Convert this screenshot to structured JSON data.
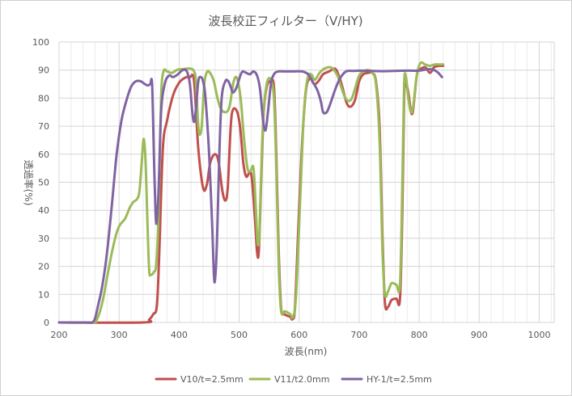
{
  "chart_data": {
    "type": "line",
    "title": "波長校正フィルター（V/HY)",
    "xlabel": "波長(nm)",
    "ylabel": "透過率(%)",
    "xlim": [
      200,
      1025
    ],
    "ylim": [
      0,
      100
    ],
    "x_ticks": [
      200,
      300,
      400,
      500,
      600,
      700,
      800,
      900,
      1000
    ],
    "y_ticks": [
      0,
      10,
      20,
      30,
      40,
      50,
      60,
      70,
      80,
      90,
      100
    ],
    "x_minor_step": 20,
    "grid": true,
    "legend_position": "bottom",
    "series": [
      {
        "name": "V10/t=2.5mm",
        "color": "#c0504d",
        "points": [
          [
            200,
            0
          ],
          [
            340,
            0
          ],
          [
            350,
            1
          ],
          [
            357,
            3
          ],
          [
            363,
            6
          ],
          [
            367,
            25
          ],
          [
            373,
            62
          ],
          [
            380,
            72
          ],
          [
            390,
            81
          ],
          [
            400,
            85.5
          ],
          [
            410,
            87.3
          ],
          [
            418,
            87.5
          ],
          [
            425,
            86
          ],
          [
            432,
            62
          ],
          [
            440,
            48
          ],
          [
            446,
            49
          ],
          [
            452,
            57
          ],
          [
            460,
            60
          ],
          [
            466,
            57
          ],
          [
            472,
            47
          ],
          [
            477,
            43.5
          ],
          [
            481,
            48
          ],
          [
            486,
            70
          ],
          [
            490,
            76
          ],
          [
            497,
            75
          ],
          [
            502,
            69
          ],
          [
            507,
            57
          ],
          [
            512,
            52
          ],
          [
            520,
            53
          ],
          [
            526,
            38
          ],
          [
            530,
            25
          ],
          [
            533,
            26
          ],
          [
            537,
            52
          ],
          [
            541,
            75
          ],
          [
            546,
            84
          ],
          [
            552,
            86
          ],
          [
            558,
            84
          ],
          [
            562,
            60
          ],
          [
            566,
            25
          ],
          [
            570,
            5
          ],
          [
            575,
            3
          ],
          [
            585,
            2
          ],
          [
            589,
            1.2
          ],
          [
            593,
            5
          ],
          [
            598,
            30
          ],
          [
            604,
            60
          ],
          [
            611,
            82
          ],
          [
            618,
            87
          ],
          [
            625,
            85
          ],
          [
            632,
            86
          ],
          [
            640,
            88.5
          ],
          [
            650,
            89.5
          ],
          [
            660,
            90.5
          ],
          [
            666,
            88
          ],
          [
            672,
            84
          ],
          [
            678,
            79
          ],
          [
            683,
            77
          ],
          [
            689,
            77.5
          ],
          [
            694,
            80
          ],
          [
            700,
            86
          ],
          [
            707,
            88.5
          ],
          [
            715,
            89
          ],
          [
            722,
            89
          ],
          [
            728,
            86
          ],
          [
            734,
            70
          ],
          [
            739,
            30
          ],
          [
            743,
            7
          ],
          [
            748,
            5.5
          ],
          [
            754,
            8
          ],
          [
            762,
            8.5
          ],
          [
            768,
            8.5
          ],
          [
            772,
            40
          ],
          [
            775,
            80
          ],
          [
            778,
            85
          ],
          [
            782,
            82
          ],
          [
            785,
            77
          ],
          [
            787,
            74.5
          ],
          [
            790,
            76
          ],
          [
            796,
            88
          ],
          [
            800,
            90
          ],
          [
            810,
            91
          ],
          [
            818,
            89
          ],
          [
            825,
            91
          ],
          [
            833,
            91.5
          ],
          [
            840,
            91.5
          ]
        ]
      },
      {
        "name": "V11/t2.0mm",
        "color": "#9bbb59",
        "points": [
          [
            200,
            0
          ],
          [
            255,
            0
          ],
          [
            263,
            1
          ],
          [
            272,
            7
          ],
          [
            280,
            16
          ],
          [
            288,
            25
          ],
          [
            296,
            32
          ],
          [
            302,
            35
          ],
          [
            310,
            37
          ],
          [
            318,
            41
          ],
          [
            324,
            43
          ],
          [
            330,
            44
          ],
          [
            334,
            47
          ],
          [
            338,
            58
          ],
          [
            341,
            65.5
          ],
          [
            344,
            58
          ],
          [
            347,
            38
          ],
          [
            350,
            19
          ],
          [
            353,
            17
          ],
          [
            358,
            18
          ],
          [
            362,
            21
          ],
          [
            366,
            40
          ],
          [
            370,
            80
          ],
          [
            374,
            89.5
          ],
          [
            380,
            89.5
          ],
          [
            388,
            89
          ],
          [
            396,
            90
          ],
          [
            404,
            90.3
          ],
          [
            412,
            90.5
          ],
          [
            420,
            90.5
          ],
          [
            425,
            89.5
          ],
          [
            428,
            86
          ],
          [
            432,
            70
          ],
          [
            435,
            67
          ],
          [
            438,
            71
          ],
          [
            442,
            85
          ],
          [
            447,
            89.5
          ],
          [
            453,
            88.5
          ],
          [
            458,
            86
          ],
          [
            464,
            80
          ],
          [
            470,
            76
          ],
          [
            478,
            75
          ],
          [
            484,
            77
          ],
          [
            490,
            85
          ],
          [
            494,
            87.5
          ],
          [
            498,
            86
          ],
          [
            503,
            79
          ],
          [
            508,
            66
          ],
          [
            514,
            55
          ],
          [
            519,
            54
          ],
          [
            524,
            55
          ],
          [
            528,
            40
          ],
          [
            531,
            28
          ],
          [
            534,
            33
          ],
          [
            538,
            62
          ],
          [
            542,
            78
          ],
          [
            547,
            86
          ],
          [
            553,
            86.5
          ],
          [
            558,
            80
          ],
          [
            562,
            55
          ],
          [
            566,
            20
          ],
          [
            570,
            4
          ],
          [
            576,
            4
          ],
          [
            585,
            3
          ],
          [
            590,
            2
          ],
          [
            595,
            10
          ],
          [
            602,
            45
          ],
          [
            608,
            75
          ],
          [
            614,
            87
          ],
          [
            620,
            88.5
          ],
          [
            626,
            86.5
          ],
          [
            634,
            89
          ],
          [
            642,
            90.5
          ],
          [
            652,
            91
          ],
          [
            658,
            90
          ],
          [
            664,
            88
          ],
          [
            670,
            84
          ],
          [
            676,
            80.5
          ],
          [
            682,
            79
          ],
          [
            688,
            80
          ],
          [
            694,
            84
          ],
          [
            700,
            88
          ],
          [
            707,
            89.5
          ],
          [
            715,
            90
          ],
          [
            722,
            89
          ],
          [
            728,
            85
          ],
          [
            734,
            65
          ],
          [
            739,
            25
          ],
          [
            743,
            10
          ],
          [
            748,
            11
          ],
          [
            754,
            14
          ],
          [
            762,
            13.5
          ],
          [
            768,
            13.5
          ],
          [
            772,
            50
          ],
          [
            775,
            85
          ],
          [
            778,
            87.5
          ],
          [
            782,
            80
          ],
          [
            786,
            75
          ],
          [
            790,
            77
          ],
          [
            796,
            88
          ],
          [
            802,
            92.5
          ],
          [
            810,
            92
          ],
          [
            818,
            91.5
          ],
          [
            826,
            92
          ],
          [
            835,
            92
          ],
          [
            840,
            92
          ]
        ]
      },
      {
        "name": "HY-1/t=2.5mm",
        "color": "#8064a2",
        "points": [
          [
            200,
            0
          ],
          [
            245,
            0
          ],
          [
            255,
            0
          ],
          [
            260,
            1.5
          ],
          [
            265,
            6
          ],
          [
            272,
            13
          ],
          [
            280,
            25
          ],
          [
            288,
            42
          ],
          [
            296,
            60
          ],
          [
            304,
            72
          ],
          [
            312,
            79
          ],
          [
            320,
            84
          ],
          [
            328,
            86
          ],
          [
            336,
            86
          ],
          [
            343,
            85
          ],
          [
            348,
            84.5
          ],
          [
            352,
            85
          ],
          [
            355,
            85
          ],
          [
            358,
            60
          ],
          [
            361,
            38
          ],
          [
            363,
            36.5
          ],
          [
            366,
            48
          ],
          [
            370,
            75
          ],
          [
            376,
            85
          ],
          [
            383,
            88
          ],
          [
            390,
            87.5
          ],
          [
            398,
            88.5
          ],
          [
            406,
            90
          ],
          [
            413,
            89.5
          ],
          [
            418,
            85
          ],
          [
            422,
            75
          ],
          [
            425,
            71.5
          ],
          [
            428,
            76
          ],
          [
            432,
            86
          ],
          [
            436,
            87.5
          ],
          [
            440,
            86
          ],
          [
            444,
            80
          ],
          [
            450,
            60
          ],
          [
            455,
            35
          ],
          [
            458,
            17
          ],
          [
            460,
            15.5
          ],
          [
            463,
            28
          ],
          [
            467,
            60
          ],
          [
            471,
            80
          ],
          [
            477,
            86
          ],
          [
            482,
            86
          ],
          [
            486,
            84
          ],
          [
            490,
            82
          ],
          [
            496,
            84
          ],
          [
            502,
            88
          ],
          [
            506,
            89.5
          ],
          [
            512,
            89
          ],
          [
            518,
            88.5
          ],
          [
            524,
            89.5
          ],
          [
            530,
            88
          ],
          [
            535,
            83
          ],
          [
            540,
            72
          ],
          [
            544,
            68.5
          ],
          [
            548,
            75
          ],
          [
            553,
            85
          ],
          [
            558,
            88.5
          ],
          [
            565,
            89.5
          ],
          [
            575,
            89.5
          ],
          [
            590,
            89.5
          ],
          [
            605,
            89.5
          ],
          [
            615,
            88.5
          ],
          [
            622,
            86
          ],
          [
            630,
            83
          ],
          [
            636,
            79
          ],
          [
            640,
            75
          ],
          [
            646,
            75
          ],
          [
            652,
            78
          ],
          [
            660,
            83
          ],
          [
            668,
            87
          ],
          [
            678,
            89.5
          ],
          [
            690,
            89.7
          ],
          [
            705,
            89.8
          ],
          [
            720,
            89.7
          ],
          [
            740,
            89.6
          ],
          [
            760,
            89.7
          ],
          [
            780,
            89.8
          ],
          [
            800,
            89.8
          ],
          [
            815,
            90.3
          ],
          [
            825,
            90
          ],
          [
            832,
            89
          ],
          [
            838,
            87.5
          ]
        ]
      }
    ]
  }
}
